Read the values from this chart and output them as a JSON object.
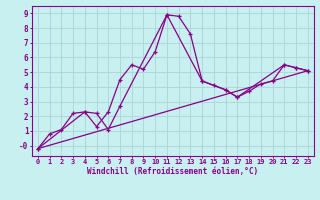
{
  "xlabel": "Windchill (Refroidissement éolien,°C)",
  "ylabel": "",
  "xlim": [
    -0.5,
    23.5
  ],
  "ylim": [
    -0.7,
    9.5
  ],
  "ytick_vals": [
    0,
    1,
    2,
    3,
    4,
    5,
    6,
    7,
    8,
    9
  ],
  "ytick_labels": [
    "-0",
    "1",
    "2",
    "3",
    "4",
    "5",
    "6",
    "7",
    "8",
    "9"
  ],
  "xticks": [
    0,
    1,
    2,
    3,
    4,
    5,
    6,
    7,
    8,
    9,
    10,
    11,
    12,
    13,
    14,
    15,
    16,
    17,
    18,
    19,
    20,
    21,
    22,
    23
  ],
  "bg_color": "#c8f0f0",
  "grid_color": "#b0d8d8",
  "line_color": "#880088",
  "line1_x": [
    0,
    1,
    2,
    3,
    4,
    5,
    6,
    7,
    8,
    9,
    10,
    11,
    12,
    13,
    14,
    15,
    16,
    17,
    18,
    19,
    20,
    21,
    22,
    23
  ],
  "line1_y": [
    -0.2,
    0.8,
    1.1,
    2.2,
    2.3,
    1.3,
    2.3,
    4.5,
    5.5,
    5.2,
    6.4,
    8.9,
    8.8,
    7.6,
    4.4,
    4.1,
    3.8,
    3.3,
    3.7,
    4.2,
    4.4,
    5.5,
    5.3,
    5.1
  ],
  "line2_x": [
    0,
    4,
    5,
    6,
    7,
    11,
    14,
    16,
    17,
    21,
    22,
    23
  ],
  "line2_y": [
    -0.2,
    2.3,
    2.2,
    1.1,
    2.7,
    8.9,
    4.4,
    3.8,
    3.3,
    5.5,
    5.3,
    5.1
  ],
  "line3_x": [
    0,
    23
  ],
  "line3_y": [
    -0.2,
    5.1
  ],
  "tick_fontsize": 5.0,
  "xlabel_fontsize": 5.5
}
